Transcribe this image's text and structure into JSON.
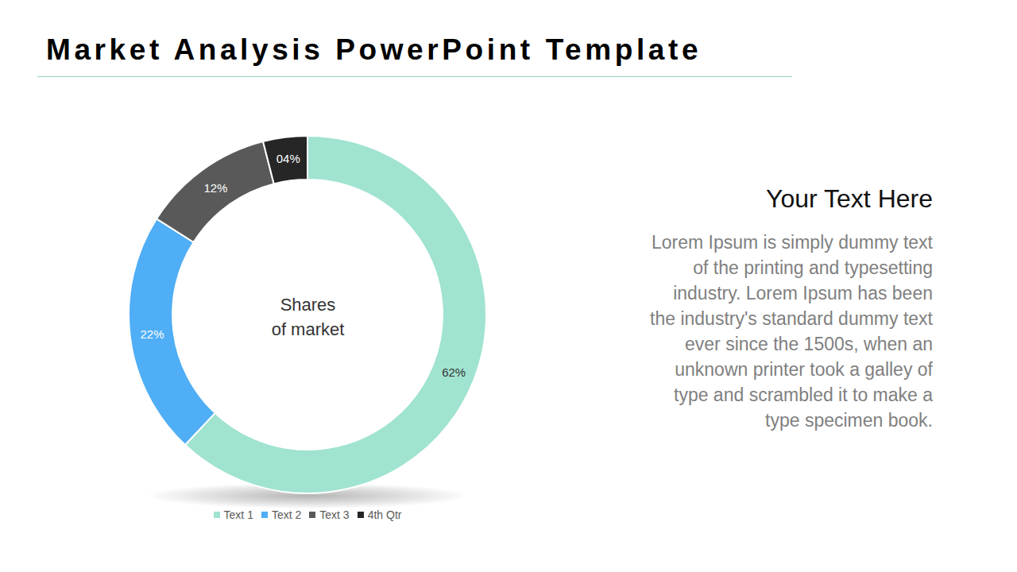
{
  "chart_data": {
    "type": "donut",
    "title": "Market Analysis PowerPoint Template",
    "annotations": [
      "Shares of market"
    ],
    "categories": [
      "Text 1",
      "Text 2",
      "Text 3",
      "4th Qtr"
    ],
    "values": [
      62,
      22,
      12,
      4
    ],
    "value_labels": [
      "62%",
      "22%",
      "12%",
      "04%"
    ],
    "colors": [
      "#a0e3d0",
      "#4faef5",
      "#595959",
      "#262626"
    ],
    "data_labels": true,
    "legend": "bottom"
  },
  "text_panel": {
    "heading": "Your Text Here",
    "body": "Lorem Ipsum is simply dummy text of the printing and typesetting industry. Lorem Ipsum has been the industry's standard dummy text ever since the 1500s, when an unknown printer took a galley of type and scrambled it to make a type specimen book."
  }
}
